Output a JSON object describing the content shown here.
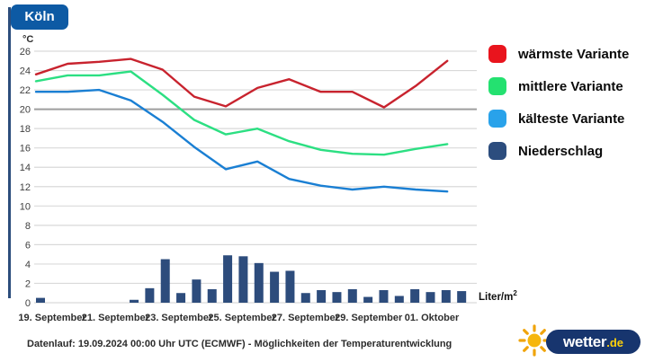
{
  "header": {
    "city": "Köln",
    "y_axis_unit": "°C"
  },
  "legend": {
    "items": [
      {
        "label": "wärmste Variante",
        "color": "#e9141d"
      },
      {
        "label": "mittlere Variante",
        "color": "#24e170"
      },
      {
        "label": "kälteste Variante",
        "color": "#29a2ea"
      },
      {
        "label": "Niederschlag",
        "color": "#2c4d7e"
      }
    ]
  },
  "chart_data": {
    "type": "line+bar",
    "title": "Köln",
    "y_axis": {
      "unit": "°C",
      "min": 0,
      "max": 26,
      "step": 2,
      "emphasized_gridline": 20
    },
    "x_tick_labels": [
      "19. September",
      "21. September",
      "23. September",
      "25. September",
      "27. September",
      "29. September",
      "01. Oktober"
    ],
    "x_tick_day_indices": [
      0,
      2,
      4,
      6,
      8,
      10,
      12
    ],
    "days_span": 14,
    "series": [
      {
        "name": "wärmste Variante",
        "color": "#c8232e",
        "values": [
          23.6,
          24.7,
          24.9,
          25.2,
          24.1,
          21.3,
          20.3,
          22.2,
          23.1,
          21.8,
          21.8,
          20.2,
          22.4,
          25.0
        ]
      },
      {
        "name": "mittlere Variante",
        "color": "#2cdf82",
        "values": [
          22.9,
          23.5,
          23.5,
          23.9,
          21.5,
          18.9,
          17.4,
          18.0,
          16.7,
          15.8,
          15.4,
          15.3,
          15.9,
          16.4
        ]
      },
      {
        "name": "kälteste Variante",
        "color": "#1a7fd3",
        "values": [
          21.8,
          21.8,
          22.0,
          20.9,
          18.7,
          16.1,
          13.8,
          14.6,
          12.8,
          12.1,
          11.7,
          12.0,
          11.7,
          11.5
        ]
      }
    ],
    "precipitation": {
      "name": "Niederschlag",
      "color": "#2d4c7c",
      "unit_label_base": "Liter/m",
      "unit_label_sup": "2",
      "slots_per_day": 2,
      "values": [
        0.5,
        0,
        0,
        0,
        0,
        0,
        0.3,
        1.5,
        4.5,
        1.0,
        2.4,
        1.4,
        4.9,
        4.8,
        4.1,
        3.2,
        3.3,
        1.0,
        1.3,
        1.1,
        1.4,
        0.6,
        1.3,
        0.7,
        1.4,
        1.1,
        1.3,
        1.2
      ]
    }
  },
  "footer": {
    "datenlauf": "Datenlauf: 19.09.2024 00:00 Uhr UTC (ECMWF) - Möglichkeiten der Temperaturentwicklung"
  },
  "logo": {
    "text": "wetter",
    "tld": ".de"
  }
}
